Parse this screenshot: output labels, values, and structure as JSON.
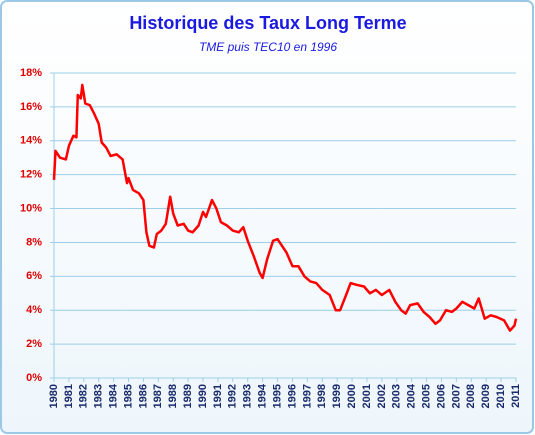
{
  "chart_data": {
    "type": "line",
    "title": "Historique des Taux Long Terme",
    "subtitle": "TME puis TEC10  en 1996",
    "color": "#ff0000",
    "grid": true,
    "xlim": [
      1980,
      2011
    ],
    "xticks": [
      1980,
      1981,
      1982,
      1983,
      1984,
      1985,
      1986,
      1987,
      1988,
      1989,
      1990,
      1991,
      1992,
      1993,
      1994,
      1995,
      1996,
      1997,
      1998,
      1999,
      2000,
      2001,
      2002,
      2003,
      2004,
      2005,
      2006,
      2007,
      2008,
      2009,
      2010,
      2011
    ],
    "ylim": [
      0,
      18
    ],
    "yticks": [
      {
        "value": 0,
        "label": "0%"
      },
      {
        "value": 2,
        "label": "2%"
      },
      {
        "value": 4,
        "label": "4%"
      },
      {
        "value": 6,
        "label": "6%"
      },
      {
        "value": 8,
        "label": "8%"
      },
      {
        "value": 10,
        "label": "10%"
      },
      {
        "value": 12,
        "label": "12%"
      },
      {
        "value": 14,
        "label": "14%"
      },
      {
        "value": 16,
        "label": "16%"
      },
      {
        "value": 18,
        "label": "18%"
      }
    ],
    "x": [
      1980.0,
      1980.1,
      1980.4,
      1980.8,
      1981.0,
      1981.3,
      1981.5,
      1981.6,
      1981.8,
      1981.9,
      1982.1,
      1982.4,
      1982.7,
      1983.0,
      1983.2,
      1983.5,
      1983.8,
      1984.2,
      1984.6,
      1984.9,
      1985.0,
      1985.3,
      1985.7,
      1986.0,
      1986.2,
      1986.4,
      1986.7,
      1986.9,
      1987.2,
      1987.5,
      1987.8,
      1988.0,
      1988.3,
      1988.7,
      1989.0,
      1989.3,
      1989.7,
      1990.0,
      1990.2,
      1990.6,
      1990.9,
      1991.2,
      1991.6,
      1992.0,
      1992.4,
      1992.7,
      1993.0,
      1993.4,
      1993.8,
      1994.0,
      1994.3,
      1994.7,
      1995.0,
      1995.3,
      1995.6,
      1996.0,
      1996.4,
      1996.8,
      1997.2,
      1997.6,
      1998.0,
      1998.5,
      1998.9,
      1999.2,
      1999.6,
      1999.9,
      2000.3,
      2000.8,
      2001.2,
      2001.6,
      2002.0,
      2002.5,
      2002.9,
      2003.3,
      2003.6,
      2003.9,
      2004.4,
      2004.8,
      2005.2,
      2005.6,
      2005.9,
      2006.3,
      2006.7,
      2007.0,
      2007.4,
      2007.8,
      2008.2,
      2008.5,
      2008.9,
      2009.3,
      2009.7,
      2010.2,
      2010.6,
      2010.9,
      2011.0
    ],
    "values": [
      11.7,
      13.4,
      13.0,
      12.9,
      13.7,
      14.3,
      14.2,
      16.7,
      16.5,
      17.3,
      16.2,
      16.1,
      15.6,
      15.0,
      13.9,
      13.6,
      13.1,
      13.2,
      12.9,
      11.5,
      11.8,
      11.1,
      10.9,
      10.5,
      8.6,
      7.8,
      7.7,
      8.5,
      8.7,
      9.1,
      10.7,
      9.7,
      9.0,
      9.1,
      8.7,
      8.6,
      9.0,
      9.8,
      9.5,
      10.5,
      10.0,
      9.2,
      9.0,
      8.7,
      8.6,
      8.9,
      8.1,
      7.2,
      6.2,
      5.9,
      7.0,
      8.1,
      8.2,
      7.8,
      7.4,
      6.6,
      6.6,
      6.0,
      5.7,
      5.6,
      5.2,
      4.9,
      4.0,
      4.0,
      4.9,
      5.6,
      5.5,
      5.4,
      5.0,
      5.2,
      4.9,
      5.2,
      4.5,
      4.0,
      3.8,
      4.3,
      4.4,
      3.9,
      3.6,
      3.2,
      3.4,
      4.0,
      3.9,
      4.1,
      4.5,
      4.3,
      4.1,
      4.7,
      3.5,
      3.7,
      3.6,
      3.4,
      2.8,
      3.1,
      3.5
    ]
  }
}
